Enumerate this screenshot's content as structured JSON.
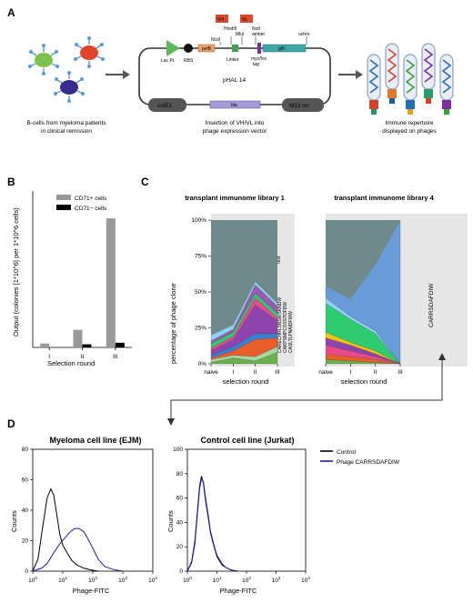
{
  "panels": {
    "a": "A",
    "b": "B",
    "c": "C",
    "d": "D"
  },
  "panel_a": {
    "label_bcells": [
      "B-cells from myeloma patients",
      "in clinical remission"
    ],
    "label_insertion": [
      "Insertion of VH/VL into",
      "phage expression vector"
    ],
    "label_repertoire": [
      "Immune repertoire",
      "displayed on phages"
    ],
    "vector_name": "pHAL 14",
    "parts": {
      "vh": "VH",
      "vl": "VL",
      "ncol": "NcoI",
      "hindiii": "HindIII",
      "mlui": "MluI",
      "noti": "NotI",
      "amber": "amber",
      "ochre": "ochre",
      "lac": "Lac Pr.",
      "rbs": "RBS",
      "pelb": "pelB",
      "linker": "Linker",
      "tag": [
        "myc/his",
        "tag"
      ],
      "giii": "gIII",
      "cole1": "colE1",
      "bla": "bla",
      "m13": "M13 ori"
    }
  },
  "chart_data": [
    {
      "id": "B",
      "type": "bar",
      "categories": [
        "I",
        "II",
        "III"
      ],
      "series": [
        {
          "name": "CD71+ cells",
          "values": [
            0.1,
            0.45,
            3.3
          ],
          "color": "#999999"
        },
        {
          "name": "CD71− cells",
          "values": [
            0.0,
            0.08,
            0.12
          ],
          "color": "#000000"
        }
      ],
      "xlabel": "Selection round",
      "ylabel": "Output (colonies [1*10^6] per 1*10^6 cells)",
      "ylim": [
        0,
        4
      ],
      "legend": "top-right"
    },
    {
      "id": "C1",
      "type": "area",
      "title": "transplant immunome library 1",
      "x": [
        "naive",
        "I",
        "II",
        "III"
      ],
      "ylabel": "percentage of phage clone",
      "xlabel": "selection round",
      "yticks": [
        "0%",
        "25%",
        "50%",
        "75%",
        "100%"
      ],
      "ylim": [
        0,
        100
      ],
      "stack": [
        {
          "color": "#6ab04c",
          "values": [
            1,
            4,
            2,
            8
          ]
        },
        {
          "color": "#a8d5a2",
          "values": [
            2,
            2,
            3,
            4
          ]
        },
        {
          "color": "#e85d2a",
          "values": [
            1,
            3,
            12,
            6
          ]
        },
        {
          "color": "#3a7fd0",
          "values": [
            2,
            3,
            4,
            3
          ]
        },
        {
          "color": "#8e44ad",
          "values": [
            3,
            5,
            20,
            9
          ]
        },
        {
          "color": "#e84a8a",
          "values": [
            2,
            2,
            5,
            2
          ]
        },
        {
          "color": "#2ecc71",
          "values": [
            3,
            3,
            3,
            3
          ]
        },
        {
          "color": "#9b59b6",
          "values": [
            2,
            2,
            6,
            5
          ]
        },
        {
          "color": "#8fd3f4",
          "values": [
            4,
            3,
            2,
            2
          ]
        }
      ],
      "annotations": [
        "rest",
        "CARECHRLSNSWSKNDW",
        "CAKPSMPCSSSTDFDW",
        "CASLTLFNAIDFWW"
      ]
    },
    {
      "id": "C4",
      "type": "area",
      "title": "transplant immunome library 4",
      "x": [
        "naive",
        "I",
        "II",
        "III"
      ],
      "xlabel": "selection round",
      "ylim": [
        0,
        100
      ],
      "stack": [
        {
          "color": "#6ab04c",
          "values": [
            3,
            2,
            1,
            0
          ]
        },
        {
          "color": "#e85d2a",
          "values": [
            4,
            3,
            2,
            0
          ]
        },
        {
          "color": "#e84a8a",
          "values": [
            6,
            4,
            2,
            0
          ]
        },
        {
          "color": "#8e44ad",
          "values": [
            5,
            4,
            2,
            0
          ]
        },
        {
          "color": "#f1c40f",
          "values": [
            4,
            2,
            2,
            0
          ]
        },
        {
          "color": "#2ecc71",
          "values": [
            20,
            16,
            12,
            0
          ]
        },
        {
          "color": "#8fd3f4",
          "values": [
            4,
            2,
            2,
            0
          ]
        },
        {
          "color": "#6a9cd9",
          "values": [
            8,
            12,
            46,
            100
          ]
        }
      ],
      "annotations": [
        "CARRSDAFDIW"
      ]
    },
    {
      "id": "D1",
      "type": "line",
      "title": "Myeloma cell line (EJM)",
      "xscale": "log",
      "xlim": [
        1,
        10000
      ],
      "ylim": [
        0,
        80
      ],
      "xlabel": "Phage-FITC",
      "ylabel": "Counts",
      "xticks": [
        "10^0",
        "10^1",
        "10^2",
        "10^3",
        "10^4"
      ],
      "yticks": [
        0,
        20,
        40,
        60,
        80
      ],
      "series": [
        {
          "name": "Control",
          "color": "#000000",
          "x": [
            1,
            1.5,
            2,
            3,
            4,
            5,
            6,
            8,
            10,
            14,
            20,
            30,
            50,
            80,
            150
          ],
          "y": [
            0,
            8,
            25,
            48,
            54,
            50,
            40,
            24,
            17,
            12,
            7,
            4,
            2,
            1,
            0
          ]
        },
        {
          "name": "Phage CARRSDAFDIW",
          "color": "#1a1aa8",
          "x": [
            1,
            2,
            3,
            5,
            8,
            12,
            18,
            25,
            35,
            50,
            70,
            100,
            150,
            250,
            500,
            1000
          ],
          "y": [
            0,
            2,
            5,
            12,
            18,
            22,
            26,
            28,
            28,
            26,
            21,
            15,
            8,
            3,
            1,
            0
          ]
        }
      ]
    },
    {
      "id": "D2",
      "type": "line",
      "title": "Control cell line (Jurkat)",
      "xscale": "log",
      "xlim": [
        1,
        10000
      ],
      "ylim": [
        0,
        100
      ],
      "xlabel": "Phage-FITC",
      "ylabel": "Counts",
      "xticks": [
        "10^0",
        "10^1",
        "10^2",
        "10^3",
        "10^4"
      ],
      "yticks": [
        0,
        20,
        40,
        60,
        80,
        100
      ],
      "series": [
        {
          "name": "Control",
          "color": "#000000",
          "x": [
            1,
            1.4,
            1.8,
            2.2,
            2.6,
            3,
            3.5,
            4,
            5,
            6,
            8,
            10,
            15,
            20,
            30,
            50
          ],
          "y": [
            0,
            8,
            25,
            50,
            70,
            78,
            72,
            60,
            45,
            32,
            20,
            12,
            5,
            3,
            1,
            0
          ]
        },
        {
          "name": "Phage CARRSDAFDIW",
          "color": "#1a1aa8",
          "x": [
            1,
            1.4,
            1.8,
            2.2,
            2.6,
            3,
            3.5,
            4,
            5,
            6,
            8,
            10,
            15,
            20,
            30,
            50
          ],
          "y": [
            0,
            7,
            23,
            48,
            68,
            76,
            73,
            62,
            47,
            33,
            21,
            13,
            6,
            3,
            1,
            0
          ]
        }
      ]
    }
  ]
}
